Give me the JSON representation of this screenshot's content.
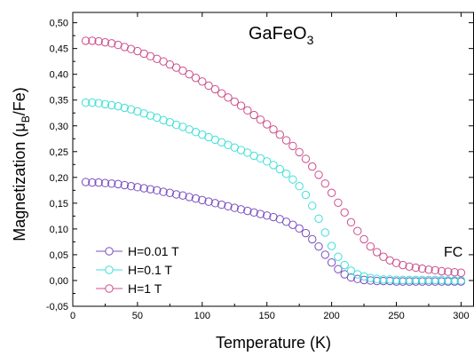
{
  "chart_data": {
    "type": "scatter",
    "title": {
      "main": "GaFeO",
      "sub": "3"
    },
    "xlabel": "Temperature (K)",
    "ylabel": {
      "pre": "Magnetization (μ",
      "sub": "B",
      "post": "/Fe)"
    },
    "xlim": [
      0,
      310
    ],
    "ylim": [
      -0.05,
      0.52
    ],
    "xticks": [
      0,
      50,
      100,
      150,
      200,
      250,
      300
    ],
    "yticks": [
      -0.05,
      0.0,
      0.05,
      0.1,
      0.15,
      0.2,
      0.25,
      0.3,
      0.35,
      0.4,
      0.45,
      0.5
    ],
    "ytick_labels": [
      "-0,05",
      "0,00",
      "0,05",
      "0,10",
      "0,15",
      "0,20",
      "0,25",
      "0,30",
      "0,35",
      "0,40",
      "0,45",
      "0,50"
    ],
    "annotation": "FC",
    "legend_position": "bottom-left",
    "series": [
      {
        "name": "H=0.01 T",
        "color": "#7b4fbf",
        "x": [
          10,
          15,
          20,
          25,
          30,
          35,
          40,
          45,
          50,
          55,
          60,
          65,
          70,
          75,
          80,
          85,
          90,
          95,
          100,
          105,
          110,
          115,
          120,
          125,
          130,
          135,
          140,
          145,
          150,
          155,
          160,
          165,
          170,
          175,
          180,
          185,
          190,
          195,
          200,
          205,
          210,
          215,
          220,
          225,
          230,
          235,
          240,
          245,
          250,
          255,
          260,
          265,
          270,
          275,
          280,
          285,
          290,
          295,
          300
        ],
        "y": [
          0.191,
          0.19,
          0.19,
          0.189,
          0.188,
          0.187,
          0.185,
          0.183,
          0.181,
          0.179,
          0.177,
          0.175,
          0.172,
          0.17,
          0.167,
          0.165,
          0.162,
          0.159,
          0.156,
          0.153,
          0.15,
          0.147,
          0.144,
          0.141,
          0.138,
          0.135,
          0.132,
          0.129,
          0.126,
          0.123,
          0.119,
          0.114,
          0.108,
          0.101,
          0.092,
          0.08,
          0.066,
          0.05,
          0.035,
          0.022,
          0.012,
          0.006,
          0.003,
          0.001,
          0.0,
          -0.001,
          -0.001,
          -0.001,
          -0.002,
          -0.002,
          -0.002,
          -0.002,
          -0.002,
          -0.002,
          -0.002,
          -0.002,
          -0.002,
          -0.002,
          -0.002
        ]
      },
      {
        "name": "H=0.1 T",
        "color": "#3fe0d8",
        "x": [
          10,
          15,
          20,
          25,
          30,
          35,
          40,
          45,
          50,
          55,
          60,
          65,
          70,
          75,
          80,
          85,
          90,
          95,
          100,
          105,
          110,
          115,
          120,
          125,
          130,
          135,
          140,
          145,
          150,
          155,
          160,
          165,
          170,
          175,
          180,
          185,
          190,
          195,
          200,
          205,
          210,
          215,
          220,
          225,
          230,
          235,
          240,
          245,
          250,
          255,
          260,
          265,
          270,
          275,
          280,
          285,
          290,
          295,
          300
        ],
        "y": [
          0.345,
          0.345,
          0.344,
          0.342,
          0.34,
          0.338,
          0.335,
          0.332,
          0.328,
          0.324,
          0.32,
          0.316,
          0.311,
          0.307,
          0.302,
          0.298,
          0.293,
          0.288,
          0.283,
          0.278,
          0.273,
          0.268,
          0.263,
          0.258,
          0.253,
          0.248,
          0.242,
          0.237,
          0.231,
          0.224,
          0.216,
          0.207,
          0.196,
          0.183,
          0.166,
          0.145,
          0.12,
          0.093,
          0.067,
          0.046,
          0.03,
          0.019,
          0.012,
          0.008,
          0.005,
          0.003,
          0.002,
          0.002,
          0.001,
          0.001,
          0.001,
          0.001,
          0.001,
          0.001,
          0.001,
          0.001,
          0.0,
          0.0,
          0.0
        ]
      },
      {
        "name": "H=1 T",
        "color": "#cc4f8d",
        "x": [
          10,
          15,
          20,
          25,
          30,
          35,
          40,
          45,
          50,
          55,
          60,
          65,
          70,
          75,
          80,
          85,
          90,
          95,
          100,
          105,
          110,
          115,
          120,
          125,
          130,
          135,
          140,
          145,
          150,
          155,
          160,
          165,
          170,
          175,
          180,
          185,
          190,
          195,
          200,
          205,
          210,
          215,
          220,
          225,
          230,
          235,
          240,
          245,
          250,
          255,
          260,
          265,
          270,
          275,
          280,
          285,
          290,
          295,
          300
        ],
        "y": [
          0.465,
          0.465,
          0.464,
          0.462,
          0.46,
          0.457,
          0.453,
          0.449,
          0.445,
          0.44,
          0.435,
          0.43,
          0.425,
          0.419,
          0.413,
          0.407,
          0.4,
          0.393,
          0.386,
          0.378,
          0.371,
          0.363,
          0.355,
          0.347,
          0.339,
          0.33,
          0.321,
          0.312,
          0.303,
          0.293,
          0.283,
          0.272,
          0.261,
          0.249,
          0.236,
          0.221,
          0.205,
          0.188,
          0.17,
          0.151,
          0.132,
          0.113,
          0.096,
          0.08,
          0.066,
          0.055,
          0.046,
          0.039,
          0.034,
          0.03,
          0.027,
          0.025,
          0.023,
          0.021,
          0.02,
          0.018,
          0.017,
          0.016,
          0.015
        ]
      }
    ]
  }
}
